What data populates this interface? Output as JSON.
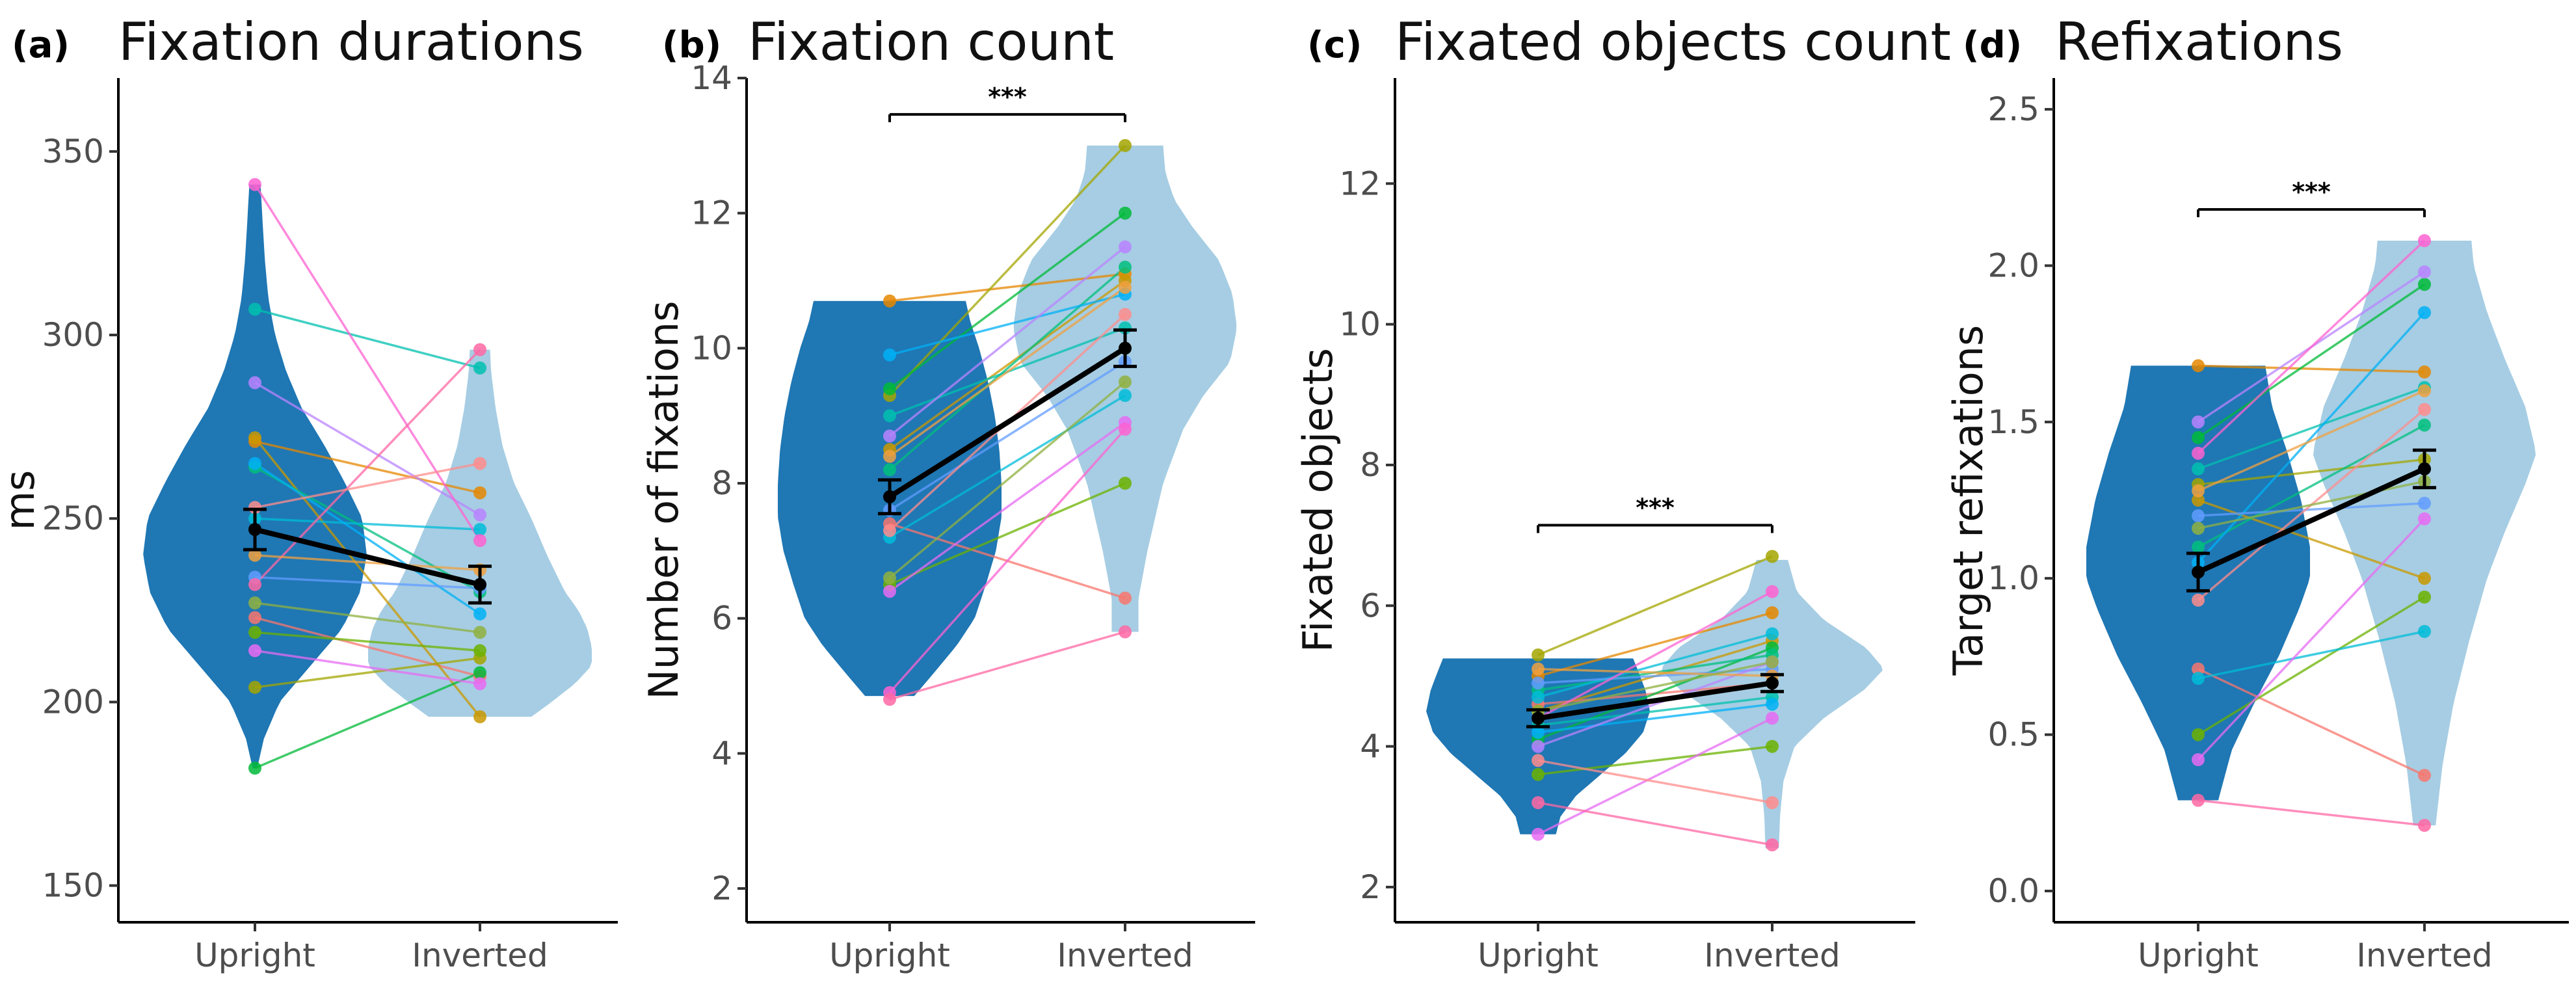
{
  "chart_data": [
    {
      "tag": "(a)",
      "title": "Fixation durations",
      "type": "violin",
      "ylabel": "ms",
      "ylim": [
        140,
        370
      ],
      "yticks": [
        150,
        200,
        250,
        300,
        350
      ],
      "categories": [
        "Upright",
        "Inverted"
      ],
      "significance": "",
      "mean": [
        247,
        232
      ],
      "error": [
        5.5,
        5
      ],
      "participants": [
        {
          "color": "#F8766D",
          "values": [
            223,
            207
          ]
        },
        {
          "color": "#E58700",
          "values": [
            271,
            257
          ]
        },
        {
          "color": "#C99800",
          "values": [
            272,
            196
          ]
        },
        {
          "color": "#A3A500",
          "values": [
            204,
            212
          ]
        },
        {
          "color": "#6BB100",
          "values": [
            219,
            214
          ]
        },
        {
          "color": "#00BA38",
          "values": [
            182,
            208
          ]
        },
        {
          "color": "#00BF7D",
          "values": [
            264,
            230
          ]
        },
        {
          "color": "#00C0AF",
          "values": [
            307,
            291
          ]
        },
        {
          "color": "#00BCD8",
          "values": [
            250,
            247
          ]
        },
        {
          "color": "#00B0F6",
          "values": [
            265,
            224
          ]
        },
        {
          "color": "#619CFF",
          "values": [
            234,
            231
          ]
        },
        {
          "color": "#B983FF",
          "values": [
            287,
            251
          ]
        },
        {
          "color": "#E76BF3",
          "values": [
            214,
            205
          ]
        },
        {
          "color": "#FD61D1",
          "values": [
            341,
            244
          ]
        },
        {
          "color": "#FF67A4",
          "values": [
            232,
            296
          ]
        },
        {
          "color": "#FF8C8C",
          "values": [
            253,
            265
          ]
        },
        {
          "color": "#F0A040",
          "values": [
            240,
            236
          ]
        },
        {
          "color": "#8FB040",
          "values": [
            227,
            219
          ]
        }
      ],
      "violin": [
        {
          "range": [
            182,
            341
          ],
          "profile": [
            [
              182,
              0.02
            ],
            [
              190,
              0.08
            ],
            [
              200,
              0.22
            ],
            [
              210,
              0.5
            ],
            [
              220,
              0.78
            ],
            [
              230,
              0.94
            ],
            [
              240,
              1.0
            ],
            [
              250,
              0.96
            ],
            [
              260,
              0.8
            ],
            [
              270,
              0.62
            ],
            [
              280,
              0.42
            ],
            [
              290,
              0.28
            ],
            [
              300,
              0.18
            ],
            [
              310,
              0.12
            ],
            [
              320,
              0.09
            ],
            [
              330,
              0.07
            ],
            [
              341,
              0.05
            ]
          ]
        },
        {
          "range": [
            196,
            296
          ],
          "profile": [
            [
              196,
              0.46
            ],
            [
              200,
              0.64
            ],
            [
              205,
              0.85
            ],
            [
              210,
              1.0
            ],
            [
              215,
              1.0
            ],
            [
              220,
              0.96
            ],
            [
              225,
              0.88
            ],
            [
              230,
              0.76
            ],
            [
              240,
              0.6
            ],
            [
              250,
              0.46
            ],
            [
              260,
              0.3
            ],
            [
              270,
              0.2
            ],
            [
              280,
              0.14
            ],
            [
              290,
              0.1
            ],
            [
              296,
              0.09
            ]
          ]
        }
      ]
    },
    {
      "tag": "(b)",
      "title": "Fixation count",
      "type": "violin",
      "ylabel": "Number of fixations",
      "ylim": [
        1.5,
        14
      ],
      "yticks": [
        2,
        4,
        6,
        8,
        10,
        12,
        14
      ],
      "categories": [
        "Upright",
        "Inverted"
      ],
      "significance": "***",
      "mean": [
        7.8,
        10.0
      ],
      "error": [
        0.25,
        0.27
      ],
      "participants": [
        {
          "color": "#F8766D",
          "values": [
            7.4,
            6.3
          ]
        },
        {
          "color": "#E58700",
          "values": [
            10.7,
            11.1
          ]
        },
        {
          "color": "#C99800",
          "values": [
            8.5,
            11.0
          ]
        },
        {
          "color": "#A3A500",
          "values": [
            9.3,
            13.0
          ]
        },
        {
          "color": "#6BB100",
          "values": [
            6.5,
            8.0
          ]
        },
        {
          "color": "#00BA38",
          "values": [
            9.4,
            12.0
          ]
        },
        {
          "color": "#00BF7D",
          "values": [
            8.2,
            11.2
          ]
        },
        {
          "color": "#00C0AF",
          "values": [
            9.0,
            10.3
          ]
        },
        {
          "color": "#00BCD8",
          "values": [
            7.2,
            9.3
          ]
        },
        {
          "color": "#00B0F6",
          "values": [
            9.9,
            10.8
          ]
        },
        {
          "color": "#619CFF",
          "values": [
            7.6,
            9.8
          ]
        },
        {
          "color": "#B983FF",
          "values": [
            8.7,
            11.5
          ]
        },
        {
          "color": "#E76BF3",
          "values": [
            6.4,
            8.9
          ]
        },
        {
          "color": "#FD61D1",
          "values": [
            4.9,
            8.8
          ]
        },
        {
          "color": "#FF67A4",
          "values": [
            4.8,
            5.8
          ]
        },
        {
          "color": "#FF8C8C",
          "values": [
            7.3,
            10.5
          ]
        },
        {
          "color": "#F0A040",
          "values": [
            8.4,
            10.9
          ]
        },
        {
          "color": "#8FB040",
          "values": [
            6.6,
            9.5
          ]
        }
      ],
      "violin": [
        {
          "range": [
            4.85,
            10.7
          ],
          "profile": [
            [
              4.85,
              0.22
            ],
            [
              5.2,
              0.4
            ],
            [
              5.6,
              0.6
            ],
            [
              6.0,
              0.76
            ],
            [
              6.5,
              0.86
            ],
            [
              7.0,
              0.95
            ],
            [
              7.5,
              1.0
            ],
            [
              8.0,
              1.0
            ],
            [
              8.5,
              0.98
            ],
            [
              9.0,
              0.94
            ],
            [
              9.5,
              0.88
            ],
            [
              10.0,
              0.8
            ],
            [
              10.4,
              0.72
            ],
            [
              10.7,
              0.68
            ]
          ]
        },
        {
          "range": [
            5.8,
            13.0
          ],
          "profile": [
            [
              5.8,
              0.12
            ],
            [
              6.3,
              0.12
            ],
            [
              7.0,
              0.2
            ],
            [
              8.0,
              0.34
            ],
            [
              8.8,
              0.52
            ],
            [
              9.3,
              0.7
            ],
            [
              9.8,
              0.94
            ],
            [
              10.3,
              1.0
            ],
            [
              10.8,
              0.96
            ],
            [
              11.3,
              0.84
            ],
            [
              11.8,
              0.6
            ],
            [
              12.2,
              0.44
            ],
            [
              12.6,
              0.36
            ],
            [
              13.0,
              0.34
            ]
          ]
        }
      ]
    },
    {
      "tag": "(c)",
      "title": "Fixated objects count",
      "type": "violin",
      "ylabel": "Fixated objects",
      "ylim": [
        1.5,
        13.5
      ],
      "yticks": [
        2,
        4,
        6,
        8,
        10,
        12
      ],
      "categories": [
        "Upright",
        "Inverted"
      ],
      "significance": "***",
      "mean": [
        4.4,
        4.9
      ],
      "error": [
        0.12,
        0.12
      ],
      "participants": [
        {
          "color": "#F8766D",
          "values": [
            4.6,
            4.9
          ]
        },
        {
          "color": "#E58700",
          "values": [
            5.0,
            5.9
          ]
        },
        {
          "color": "#C99800",
          "values": [
            4.5,
            5.5
          ]
        },
        {
          "color": "#A3A500",
          "values": [
            5.3,
            6.7
          ]
        },
        {
          "color": "#6BB100",
          "values": [
            3.6,
            4.0
          ]
        },
        {
          "color": "#00BA38",
          "values": [
            4.1,
            5.4
          ]
        },
        {
          "color": "#00BF7D",
          "values": [
            4.8,
            5.3
          ]
        },
        {
          "color": "#00C0AF",
          "values": [
            4.3,
            4.7
          ]
        },
        {
          "color": "#00BCD8",
          "values": [
            4.7,
            5.6
          ]
        },
        {
          "color": "#00B0F6",
          "values": [
            4.2,
            4.6
          ]
        },
        {
          "color": "#619CFF",
          "values": [
            4.9,
            5.1
          ]
        },
        {
          "color": "#B983FF",
          "values": [
            4.0,
            5.2
          ]
        },
        {
          "color": "#E76BF3",
          "values": [
            2.75,
            4.4
          ]
        },
        {
          "color": "#FD61D1",
          "values": [
            4.4,
            6.2
          ]
        },
        {
          "color": "#FF67A4",
          "values": [
            3.2,
            2.6
          ]
        },
        {
          "color": "#FF8C8C",
          "values": [
            3.8,
            3.2
          ]
        },
        {
          "color": "#F0A040",
          "values": [
            5.1,
            5.0
          ]
        },
        {
          "color": "#8FB040",
          "values": [
            4.5,
            5.2
          ]
        }
      ],
      "violin": [
        {
          "range": [
            2.75,
            5.25
          ],
          "profile": [
            [
              2.75,
              0.16
            ],
            [
              3.0,
              0.2
            ],
            [
              3.3,
              0.34
            ],
            [
              3.6,
              0.56
            ],
            [
              3.9,
              0.78
            ],
            [
              4.2,
              0.94
            ],
            [
              4.5,
              1.0
            ],
            [
              4.8,
              0.96
            ],
            [
              5.05,
              0.9
            ],
            [
              5.25,
              0.85
            ]
          ]
        },
        {
          "range": [
            2.55,
            6.65
          ],
          "profile": [
            [
              2.55,
              0.06
            ],
            [
              3.0,
              0.07
            ],
            [
              3.5,
              0.1
            ],
            [
              4.0,
              0.2
            ],
            [
              4.4,
              0.46
            ],
            [
              4.8,
              0.82
            ],
            [
              5.1,
              1.0
            ],
            [
              5.4,
              0.84
            ],
            [
              5.8,
              0.46
            ],
            [
              6.2,
              0.22
            ],
            [
              6.65,
              0.14
            ]
          ]
        }
      ]
    },
    {
      "tag": "(d)",
      "title": "Refixations",
      "type": "violin",
      "ylabel": "Target refixations",
      "ylim": [
        -0.1,
        2.6
      ],
      "yticks": [
        0.0,
        0.5,
        1.0,
        1.5,
        2.0,
        2.5
      ],
      "ytick_labels": [
        "0.0",
        "0.5",
        "1.0",
        "1.5",
        "2.0",
        "2.5"
      ],
      "categories": [
        "Upright",
        "Inverted"
      ],
      "significance": "***",
      "mean": [
        1.02,
        1.35
      ],
      "error": [
        0.06,
        0.06
      ],
      "participants": [
        {
          "color": "#F8766D",
          "values": [
            0.71,
            0.37
          ]
        },
        {
          "color": "#E58700",
          "values": [
            1.68,
            1.66
          ]
        },
        {
          "color": "#C99800",
          "values": [
            1.25,
            1.0
          ]
        },
        {
          "color": "#A3A500",
          "values": [
            1.3,
            1.38
          ]
        },
        {
          "color": "#6BB100",
          "values": [
            0.5,
            0.94
          ]
        },
        {
          "color": "#00BA38",
          "values": [
            1.45,
            1.94
          ]
        },
        {
          "color": "#00BF7D",
          "values": [
            1.1,
            1.49
          ]
        },
        {
          "color": "#00C0AF",
          "values": [
            1.35,
            1.61
          ]
        },
        {
          "color": "#00BCD8",
          "values": [
            0.68,
            0.83
          ]
        },
        {
          "color": "#00B0F6",
          "values": [
            1.05,
            1.85
          ]
        },
        {
          "color": "#619CFF",
          "values": [
            1.2,
            1.24
          ]
        },
        {
          "color": "#B983FF",
          "values": [
            1.5,
            1.98
          ]
        },
        {
          "color": "#E76BF3",
          "values": [
            0.42,
            1.19
          ]
        },
        {
          "color": "#FD61D1",
          "values": [
            1.4,
            2.08
          ]
        },
        {
          "color": "#FF67A4",
          "values": [
            0.29,
            0.21
          ]
        },
        {
          "color": "#FF8C8C",
          "values": [
            0.93,
            1.54
          ]
        },
        {
          "color": "#F0A040",
          "values": [
            1.28,
            1.6
          ]
        },
        {
          "color": "#8FB040",
          "values": [
            1.16,
            1.31
          ]
        }
      ],
      "violin": [
        {
          "range": [
            0.29,
            1.68
          ],
          "profile": [
            [
              0.29,
              0.18
            ],
            [
              0.45,
              0.3
            ],
            [
              0.6,
              0.5
            ],
            [
              0.75,
              0.72
            ],
            [
              0.9,
              0.9
            ],
            [
              1.0,
              1.0
            ],
            [
              1.1,
              1.0
            ],
            [
              1.25,
              0.92
            ],
            [
              1.4,
              0.8
            ],
            [
              1.55,
              0.66
            ],
            [
              1.68,
              0.6
            ]
          ]
        },
        {
          "range": [
            0.21,
            2.08
          ],
          "profile": [
            [
              0.21,
              0.1
            ],
            [
              0.4,
              0.16
            ],
            [
              0.6,
              0.26
            ],
            [
              0.8,
              0.4
            ],
            [
              1.0,
              0.56
            ],
            [
              1.15,
              0.72
            ],
            [
              1.3,
              0.9
            ],
            [
              1.4,
              1.0
            ],
            [
              1.55,
              0.9
            ],
            [
              1.7,
              0.72
            ],
            [
              1.85,
              0.56
            ],
            [
              2.0,
              0.44
            ],
            [
              2.08,
              0.42
            ]
          ]
        }
      ]
    }
  ]
}
